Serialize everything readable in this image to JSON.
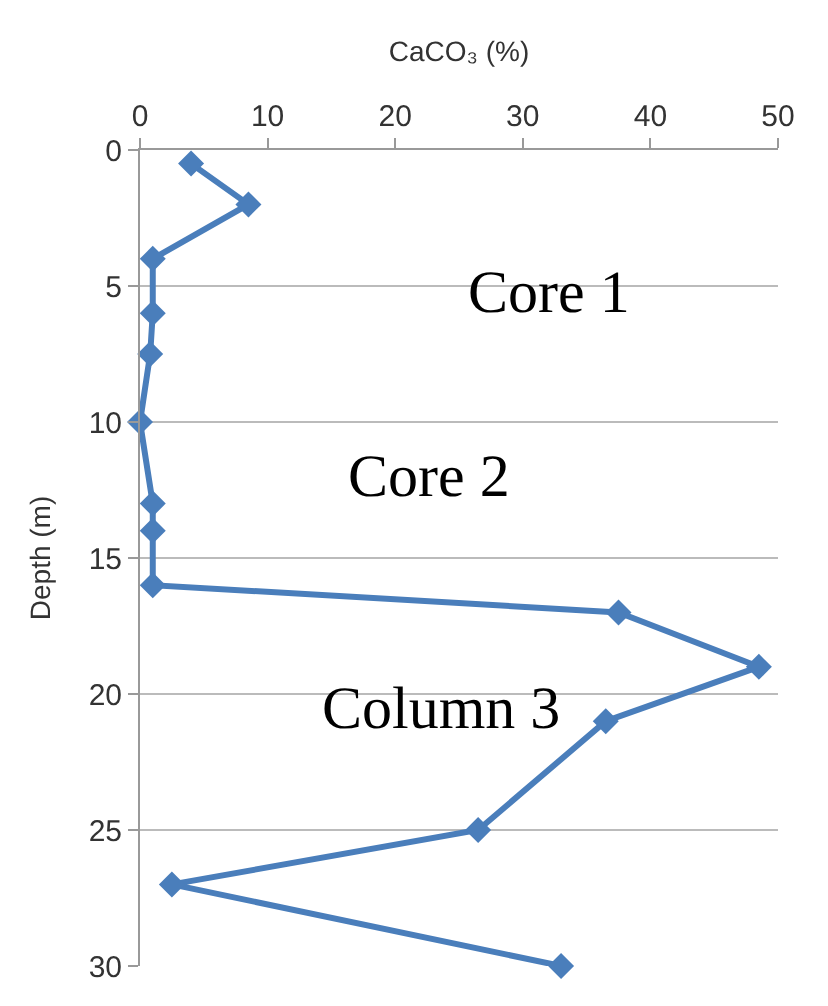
{
  "chart_data": {
    "type": "line",
    "xlabel": "CaCO₃ (%)",
    "ylabel": "Depth (m)",
    "series": [
      {
        "color": "#4a7ebb",
        "x": [
          4,
          8.5,
          1,
          1,
          0.8,
          0,
          1,
          1,
          1,
          37.5,
          48.5,
          36.5,
          26.5,
          2.5,
          33
        ],
        "values": [
          0.5,
          2,
          4,
          6,
          7.5,
          10,
          13,
          14,
          16,
          17,
          19,
          21,
          25,
          27,
          30
        ]
      }
    ],
    "xlim": [
      0,
      50
    ],
    "xticks": [
      0,
      10,
      20,
      30,
      40,
      50
    ],
    "ylim": [
      30,
      0
    ],
    "yticks": [
      0,
      5,
      10,
      15,
      20,
      25,
      30
    ],
    "grid": "y",
    "marker": "diamond",
    "legend": false,
    "annotations": [
      "Core 1",
      "Core 2",
      "Column 3"
    ]
  }
}
